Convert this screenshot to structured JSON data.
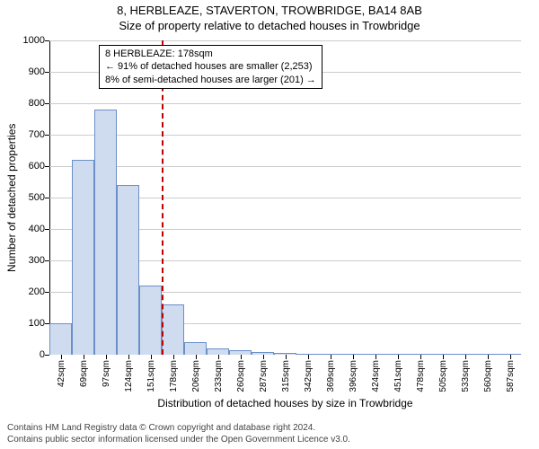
{
  "title": {
    "line1": "8, HERBLEAZE, STAVERTON, TROWBRIDGE, BA14 8AB",
    "line2": "Size of property relative to detached houses in Trowbridge"
  },
  "annotation": {
    "line1": "8 HERBLEAZE: 178sqm",
    "line2": "← 91% of detached houses are smaller (2,253)",
    "line3": "8% of semi-detached houses are larger (201) →"
  },
  "chart": {
    "type": "histogram",
    "y_axis_label": "Number of detached properties",
    "x_axis_label": "Distribution of detached houses by size in Trowbridge",
    "ylim": [
      0,
      1000
    ],
    "ytick_step": 100,
    "y_ticks": [
      0,
      100,
      200,
      300,
      400,
      500,
      600,
      700,
      800,
      900,
      1000
    ],
    "x_ticks": [
      "42sqm",
      "69sqm",
      "97sqm",
      "124sqm",
      "151sqm",
      "178sqm",
      "206sqm",
      "233sqm",
      "260sqm",
      "287sqm",
      "315sqm",
      "342sqm",
      "369sqm",
      "396sqm",
      "424sqm",
      "451sqm",
      "478sqm",
      "505sqm",
      "533sqm",
      "560sqm",
      "587sqm"
    ],
    "bar_values": [
      100,
      620,
      780,
      540,
      220,
      160,
      40,
      20,
      15,
      10,
      5,
      0,
      0,
      0,
      0,
      0,
      0,
      0,
      0,
      0,
      0
    ],
    "bar_color": "#cfdcef",
    "bar_border_color": "#6b8fc7",
    "grid_color": "#cccccc",
    "background_color": "#ffffff",
    "marker_index": 5,
    "marker_color": "#c00000"
  },
  "footer": {
    "line1": "Contains HM Land Registry data © Crown copyright and database right 2024.",
    "line2": "Contains public sector information licensed under the Open Government Licence v3.0."
  }
}
